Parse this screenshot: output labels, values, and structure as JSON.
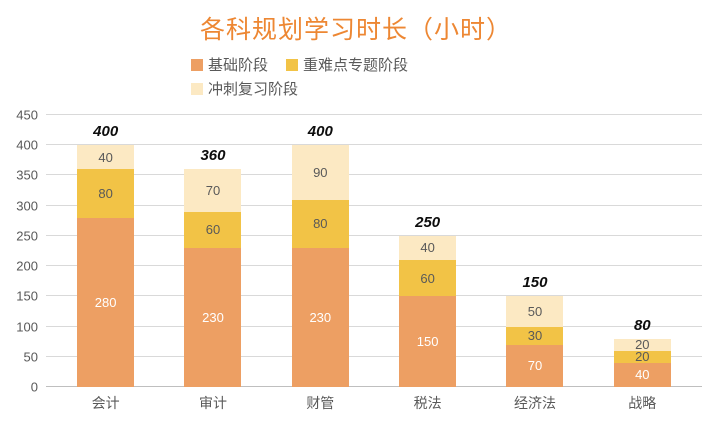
{
  "colors": {
    "title": "#ED8733",
    "axis_text": "#595959",
    "gridline": "#D9D9D9",
    "total_label": "#0D0D0D"
  },
  "chart_data": {
    "type": "bar",
    "stacked": true,
    "title": "各科规划学习时长（小时）",
    "categories": [
      "会计",
      "审计",
      "财管",
      "税法",
      "经济法",
      "战略"
    ],
    "series": [
      {
        "name": "基础阶段",
        "color": "#ED9F63",
        "label_color": "#FFFFFF",
        "values": [
          280,
          230,
          230,
          150,
          70,
          40
        ]
      },
      {
        "name": "重难点专题阶段",
        "color": "#F2C346",
        "label_color": "#595959",
        "values": [
          80,
          60,
          80,
          60,
          30,
          20
        ]
      },
      {
        "name": "冲刺复习阶段",
        "color": "#FCE9C3",
        "label_color": "#595959",
        "values": [
          40,
          70,
          90,
          40,
          50,
          20
        ]
      }
    ],
    "totals": [
      400,
      360,
      400,
      250,
      150,
      80
    ],
    "ylim": [
      0,
      450
    ],
    "ytick_step": 50,
    "grid": true,
    "legend_position": "top"
  }
}
